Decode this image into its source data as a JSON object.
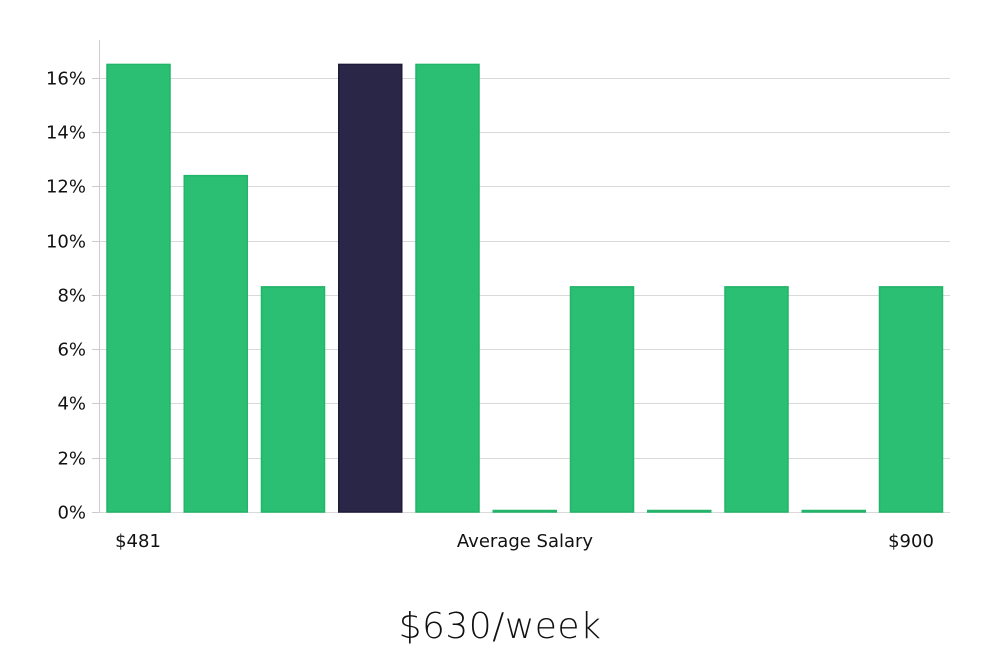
{
  "chart_data": {
    "type": "bar",
    "categories": [
      "$481",
      "",
      "",
      "",
      "",
      "",
      "",
      "",
      "",
      "",
      "$900"
    ],
    "values": [
      16.5,
      12.4,
      8.3,
      16.5,
      16.5,
      0,
      8.3,
      0,
      8.3,
      0,
      8.3
    ],
    "highlight_index": 3,
    "bar_color": "#2bbf73",
    "highlight_color": "#2a2647",
    "grid_color": "#d9d9d9",
    "grid": true,
    "ylim": [
      0,
      17.4
    ],
    "yticks": [
      0,
      2,
      4,
      6,
      8,
      10,
      12,
      14,
      16
    ],
    "ytick_suffix": "%",
    "x_start_label": "$481",
    "x_end_label": "$900",
    "xlabel": "Average Salary",
    "ylabel": ""
  },
  "summary": {
    "average_salary": "$630/week"
  }
}
